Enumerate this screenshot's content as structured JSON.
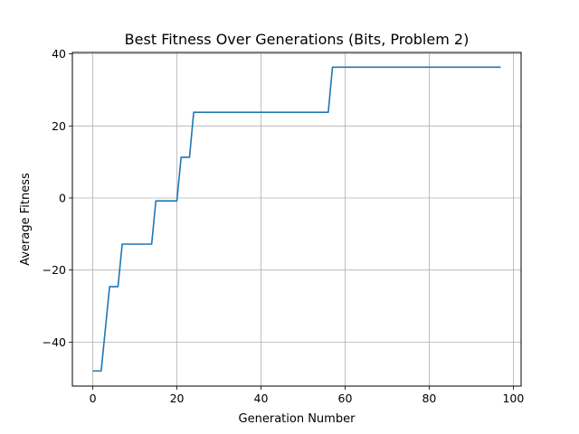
{
  "chart_data": {
    "type": "line",
    "title": "Best Fitness Over Generations (Bits, Problem 2)",
    "xlabel": "Generation Number",
    "ylabel": "Average Fitness",
    "xlim": [
      -4.85,
      101.85
    ],
    "ylim": [
      -52.2,
      40.4
    ],
    "xticks": [
      0,
      20,
      40,
      60,
      80,
      100
    ],
    "xtick_labels": [
      "0",
      "20",
      "40",
      "60",
      "80",
      "100"
    ],
    "yticks": [
      -40,
      -20,
      0,
      20,
      40
    ],
    "ytick_labels": [
      "−40",
      "−20",
      "0",
      "20",
      "40"
    ],
    "grid": true,
    "color": "#1f77b4",
    "series": [
      {
        "points": [
          [
            0,
            -48
          ],
          [
            2,
            -48
          ],
          [
            4,
            -24.6
          ],
          [
            6,
            -24.6
          ],
          [
            7,
            -12.8
          ],
          [
            14,
            -12.8
          ],
          [
            15,
            -0.8
          ],
          [
            20,
            -0.8
          ],
          [
            21,
            11.3
          ],
          [
            23,
            11.3
          ],
          [
            24,
            23.8
          ],
          [
            56,
            23.8
          ],
          [
            57,
            36.3
          ],
          [
            97,
            36.3
          ]
        ]
      }
    ]
  }
}
